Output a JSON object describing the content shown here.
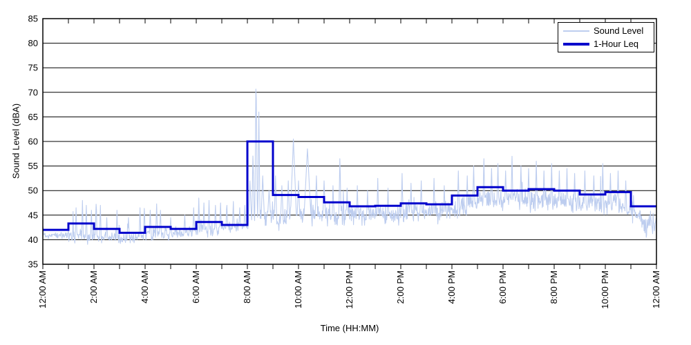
{
  "figure": {
    "background": "#ffffff",
    "axis_color": "#000000",
    "grid_color": "#000000"
  },
  "chart_data": {
    "type": "line",
    "title": "",
    "xlabel": "Time (HH:MM)",
    "ylabel": "Sound Level (dBA)",
    "x_range_hours": [
      0,
      24
    ],
    "ylim": [
      35,
      85
    ],
    "y_ticks": [
      35,
      40,
      45,
      50,
      55,
      60,
      65,
      70,
      75,
      80,
      85
    ],
    "x_tick_interval_hours": 1,
    "x_label_interval_hours": 2,
    "x_tick_labels": [
      "12:00 AM",
      "2:00 AM",
      "4:00 AM",
      "6:00 AM",
      "8:00 AM",
      "10:00 AM",
      "12:00 PM",
      "2:00 PM",
      "4:00 PM",
      "6:00 PM",
      "8:00 PM",
      "10:00 PM",
      "12:00 AM"
    ],
    "grid": "horizontal",
    "legend": {
      "position": "top-right",
      "entries": [
        {
          "label": "Sound Level",
          "color": "#BDCDEF",
          "swatch_width": 2
        },
        {
          "label": "1-Hour Leq",
          "color": "#0000CC",
          "swatch_width": 4
        }
      ]
    },
    "series": [
      {
        "name": "1-Hour Leq",
        "type": "step",
        "color": "#0000CC",
        "line_width": 3,
        "hourly_values": [
          42.0,
          43.3,
          42.2,
          41.4,
          42.6,
          42.2,
          43.6,
          43.0,
          60.0,
          49.1,
          48.7,
          47.6,
          46.8,
          46.9,
          47.4,
          47.2,
          49.0,
          50.7,
          50.0,
          50.3,
          50.0,
          49.2,
          49.7,
          46.8
        ]
      },
      {
        "name": "Sound Level",
        "type": "noisy-line",
        "color": "#BDCDEF",
        "line_width": 1.1,
        "sample_interval_min": 1,
        "noise_seed": 12,
        "value_clip": [
          37.6,
          75.2
        ],
        "peak_value": 74.8,
        "peak_time_hours": 8.34,
        "base_curve": [
          [
            0,
            41.0
          ],
          [
            1,
            41.0
          ],
          [
            1.5,
            40.6
          ],
          [
            2,
            40.3
          ],
          [
            3.5,
            40.2
          ],
          [
            4.2,
            41.3
          ],
          [
            5.5,
            41.3
          ],
          [
            6,
            42.0
          ],
          [
            7.5,
            42.3
          ],
          [
            8,
            43.0
          ],
          [
            8.5,
            44.3
          ],
          [
            9,
            44.0
          ],
          [
            10,
            45.0
          ],
          [
            12,
            45.0
          ],
          [
            14,
            45.3
          ],
          [
            16,
            45.8
          ],
          [
            16.8,
            47.2
          ],
          [
            17,
            48.2
          ],
          [
            18,
            48.2
          ],
          [
            20,
            48.0
          ],
          [
            21,
            47.4
          ],
          [
            22.5,
            47.3
          ],
          [
            23,
            45.8
          ],
          [
            23.6,
            43.0
          ],
          [
            24,
            43.2
          ]
        ],
        "noise_amp": [
          0.55,
          1.0,
          0.85,
          0.75,
          0.95,
          0.75,
          1.05,
          0.95,
          1.5,
          1.7,
          1.5,
          1.5,
          1.45,
          1.45,
          1.5,
          1.5,
          1.55,
          1.6,
          1.6,
          1.6,
          1.55,
          1.55,
          1.5,
          1.5
        ],
        "spike_prob": [
          0.02,
          0.05,
          0.05,
          0.04,
          0.05,
          0.03,
          0.08,
          0.06,
          0.07,
          0.08,
          0.07,
          0.07,
          0.06,
          0.06,
          0.06,
          0.06,
          0.07,
          0.08,
          0.07,
          0.07,
          0.06,
          0.06,
          0.06,
          0.04
        ],
        "spike_amp": [
          2.5,
          5.5,
          5.5,
          4.5,
          4.5,
          3.5,
          5.0,
          4.5,
          5.0,
          5.0,
          4.5,
          4.5,
          4.0,
          4.0,
          4.5,
          4.5,
          4.5,
          4.5,
          4.5,
          4.5,
          4.5,
          4.0,
          4.0,
          3.0
        ],
        "peak_events": [
          [
            1.3,
            46.5,
            2
          ],
          [
            1.55,
            48,
            2
          ],
          [
            1.7,
            47,
            2
          ],
          [
            1.9,
            46,
            2
          ],
          [
            2.08,
            48,
            2
          ],
          [
            2.25,
            47,
            2
          ],
          [
            2.5,
            44.5,
            2
          ],
          [
            2.9,
            46,
            2
          ],
          [
            3.35,
            44.5,
            2
          ],
          [
            3.8,
            46.5,
            2
          ],
          [
            3.97,
            47,
            2
          ],
          [
            4.2,
            46,
            2
          ],
          [
            4.45,
            47.3,
            2
          ],
          [
            4.6,
            46,
            2
          ],
          [
            5.0,
            44.5,
            2
          ],
          [
            5.55,
            45,
            2
          ],
          [
            5.9,
            46.5,
            2
          ],
          [
            6.1,
            48.5,
            2
          ],
          [
            6.3,
            47.5,
            2
          ],
          [
            6.5,
            48,
            2
          ],
          [
            6.75,
            47,
            2
          ],
          [
            6.95,
            47.5,
            2
          ],
          [
            7.2,
            47,
            2
          ],
          [
            7.45,
            47.8,
            2
          ],
          [
            7.7,
            46.5,
            2
          ],
          [
            7.9,
            47,
            2
          ],
          [
            8.1,
            52,
            4
          ],
          [
            8.22,
            58,
            3
          ],
          [
            8.34,
            74.8,
            3
          ],
          [
            8.45,
            66,
            2.5
          ],
          [
            8.6,
            53,
            4
          ],
          [
            8.85,
            50,
            4
          ],
          [
            9.1,
            53,
            3
          ],
          [
            9.35,
            51,
            3
          ],
          [
            9.6,
            52,
            3
          ],
          [
            9.8,
            60.5,
            7
          ],
          [
            10.0,
            52,
            3
          ],
          [
            10.35,
            58.5,
            8
          ],
          [
            10.7,
            53,
            3
          ],
          [
            11.0,
            52,
            3
          ],
          [
            11.35,
            51,
            2
          ],
          [
            11.62,
            57.5,
            2.5
          ],
          [
            11.9,
            50.5,
            2
          ],
          [
            12.3,
            51,
            2
          ],
          [
            12.7,
            50,
            2
          ],
          [
            13.1,
            52.5,
            2
          ],
          [
            13.5,
            50.5,
            2
          ],
          [
            14.05,
            53.5,
            2
          ],
          [
            14.4,
            51.5,
            2
          ],
          [
            14.8,
            52,
            2
          ],
          [
            15.3,
            52.5,
            2
          ],
          [
            15.7,
            51,
            2
          ],
          [
            16.25,
            54,
            2
          ],
          [
            16.6,
            53,
            2
          ],
          [
            16.85,
            55,
            2
          ],
          [
            17.25,
            56.5,
            2
          ],
          [
            17.55,
            54.5,
            2
          ],
          [
            17.8,
            55.5,
            2
          ],
          [
            18.1,
            54,
            2
          ],
          [
            18.35,
            57,
            2
          ],
          [
            18.7,
            55,
            2
          ],
          [
            19.0,
            54.5,
            2
          ],
          [
            19.3,
            56,
            2
          ],
          [
            19.6,
            54,
            2
          ],
          [
            19.9,
            55.5,
            2
          ],
          [
            20.2,
            54,
            2
          ],
          [
            20.5,
            54.5,
            2
          ],
          [
            20.8,
            53.5,
            2
          ],
          [
            21.2,
            54,
            2
          ],
          [
            21.55,
            53,
            2
          ],
          [
            21.9,
            55.5,
            2
          ],
          [
            22.2,
            53.5,
            2
          ],
          [
            22.5,
            54,
            2
          ],
          [
            22.8,
            52,
            2
          ],
          [
            23.1,
            49,
            2
          ]
        ]
      }
    ]
  }
}
